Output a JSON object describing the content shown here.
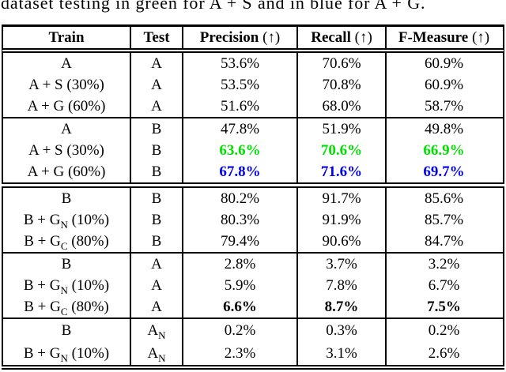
{
  "caption": "dataset testing in green for A + S and in blue for A + G.",
  "colors": {
    "highlight_green": "#00e000",
    "highlight_blue": "#0000ee",
    "text": "#000000",
    "background": "#ffffff"
  },
  "icons": {
    "up_arrow": "↑"
  },
  "table": {
    "headers": {
      "train": {
        "label": "Train",
        "suffix": ""
      },
      "test": {
        "label": "Test",
        "suffix": ""
      },
      "precision": {
        "label": "Precision",
        "suffix": " (↑)"
      },
      "recall": {
        "label": "Recall",
        "suffix": " (↑)"
      },
      "fmeasure": {
        "label": "F-Measure",
        "suffix": " (↑)"
      }
    },
    "groups": [
      {
        "rows": [
          {
            "train": {
              "pre": "A",
              "sub": "",
              "post": ""
            },
            "test": {
              "pre": "A",
              "sub": ""
            },
            "precision": "53.6%",
            "recall": "70.6%",
            "fmeasure": "60.9%",
            "style": ""
          },
          {
            "train": {
              "pre": "A + S (30%)",
              "sub": "",
              "post": ""
            },
            "test": {
              "pre": "A",
              "sub": ""
            },
            "precision": "53.5%",
            "recall": "70.8%",
            "fmeasure": "60.9%",
            "style": ""
          },
          {
            "train": {
              "pre": "A + G (60%)",
              "sub": "",
              "post": ""
            },
            "test": {
              "pre": "A",
              "sub": ""
            },
            "precision": "51.6%",
            "recall": "68.0%",
            "fmeasure": "58.7%",
            "style": ""
          }
        ]
      },
      {
        "rows": [
          {
            "train": {
              "pre": "A",
              "sub": "",
              "post": ""
            },
            "test": {
              "pre": "B",
              "sub": ""
            },
            "precision": "47.8%",
            "recall": "51.9%",
            "fmeasure": "49.8%",
            "style": ""
          },
          {
            "train": {
              "pre": "A + S (30%)",
              "sub": "",
              "post": ""
            },
            "test": {
              "pre": "B",
              "sub": ""
            },
            "precision": "63.6%",
            "recall": "70.6%",
            "fmeasure": "66.9%",
            "style": "green"
          },
          {
            "train": {
              "pre": "A + G (60%)",
              "sub": "",
              "post": ""
            },
            "test": {
              "pre": "B",
              "sub": ""
            },
            "precision": "67.8%",
            "recall": "71.6%",
            "fmeasure": "69.7%",
            "style": "blue"
          }
        ]
      },
      {
        "rows": [
          {
            "train": {
              "pre": "B",
              "sub": "",
              "post": ""
            },
            "test": {
              "pre": "B",
              "sub": ""
            },
            "precision": "80.2%",
            "recall": "91.7%",
            "fmeasure": "85.6%",
            "style": ""
          },
          {
            "train": {
              "pre": "B + G",
              "sub": "N",
              "post": " (10%)"
            },
            "test": {
              "pre": "B",
              "sub": ""
            },
            "precision": "80.3%",
            "recall": "91.9%",
            "fmeasure": "85.7%",
            "style": ""
          },
          {
            "train": {
              "pre": "B + G",
              "sub": "C",
              "post": " (80%)"
            },
            "test": {
              "pre": "B",
              "sub": ""
            },
            "precision": "79.4%",
            "recall": "90.6%",
            "fmeasure": "84.7%",
            "style": ""
          }
        ]
      },
      {
        "rows": [
          {
            "train": {
              "pre": "B",
              "sub": "",
              "post": ""
            },
            "test": {
              "pre": "A",
              "sub": ""
            },
            "precision": "2.8%",
            "recall": "3.7%",
            "fmeasure": "3.2%",
            "style": ""
          },
          {
            "train": {
              "pre": "B + G",
              "sub": "N",
              "post": " (10%)"
            },
            "test": {
              "pre": "A",
              "sub": ""
            },
            "precision": "5.9%",
            "recall": "7.8%",
            "fmeasure": "6.7%",
            "style": ""
          },
          {
            "train": {
              "pre": "B + G",
              "sub": "C",
              "post": " (80%)"
            },
            "test": {
              "pre": "A",
              "sub": ""
            },
            "precision": "6.6%",
            "recall": "8.7%",
            "fmeasure": "7.5%",
            "style": "boldv"
          }
        ]
      },
      {
        "rows": [
          {
            "train": {
              "pre": "B",
              "sub": "",
              "post": ""
            },
            "test": {
              "pre": "A",
              "sub": "N"
            },
            "precision": "0.2%",
            "recall": "0.3%",
            "fmeasure": "0.2%",
            "style": ""
          },
          {
            "train": {
              "pre": "B + G",
              "sub": "N",
              "post": " (10%)"
            },
            "test": {
              "pre": "A",
              "sub": "N"
            },
            "precision": "2.3%",
            "recall": "3.1%",
            "fmeasure": "2.6%",
            "style": ""
          }
        ]
      }
    ]
  }
}
